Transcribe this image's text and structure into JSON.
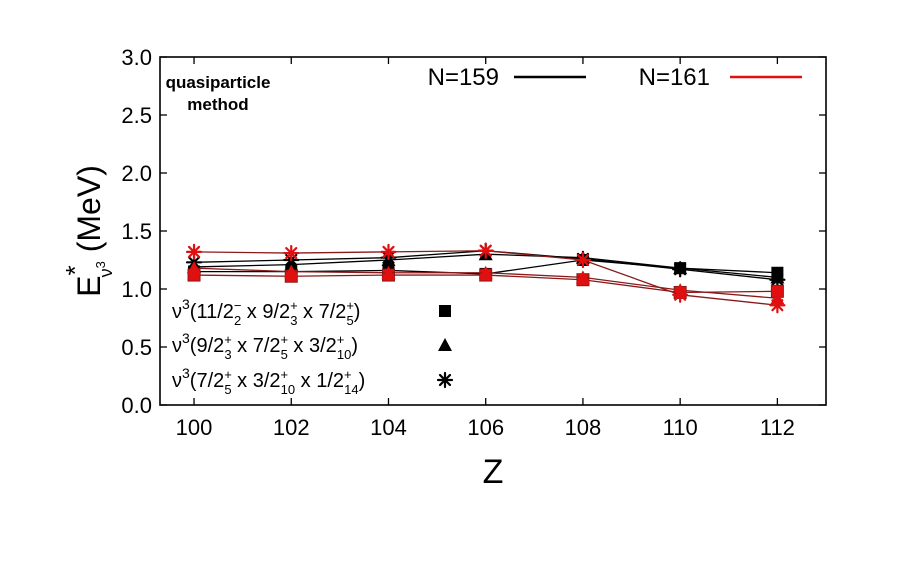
{
  "chart_data": {
    "type": "line",
    "title": "",
    "xlabel": "Z",
    "ylabel": {
      "main": "E",
      "star": "*",
      "sub": "ν",
      "subsup": "3",
      "unit": " (MeV)"
    },
    "xlim": [
      99.3,
      113
    ],
    "ylim": [
      0,
      3.0
    ],
    "x_ticks": [
      100,
      102,
      104,
      106,
      108,
      110,
      112
    ],
    "y_ticks": [
      0.0,
      0.5,
      1.0,
      1.5,
      2.0,
      2.5,
      3.0
    ],
    "y_tick_labels": [
      "0.0",
      "0.5",
      "1.0",
      "1.5",
      "2.0",
      "2.5",
      "3.0"
    ],
    "x": [
      100,
      102,
      104,
      106,
      108,
      110,
      112
    ],
    "annotation": [
      "quasiparticle",
      "method"
    ],
    "colors": {
      "N159": "#000000",
      "N161": "#e01010",
      "N161_line": "#8a1a1a"
    },
    "color_legend": [
      {
        "label": "N=159",
        "color": "#000000"
      },
      {
        "label": "N=161",
        "color": "#e01010"
      }
    ],
    "marker_legend": [
      {
        "marker": "square",
        "prefix": "ν",
        "exp": "3",
        "parts": [
          {
            "t": "(11/2"
          },
          {
            "sup": "−",
            "sub": "2"
          },
          {
            "t": " x 9/2"
          },
          {
            "sup": "+",
            "sub": "3"
          },
          {
            "t": " x 7/2"
          },
          {
            "sup": "+",
            "sub": "5"
          },
          {
            "t": ")"
          }
        ]
      },
      {
        "marker": "triangle",
        "prefix": "ν",
        "exp": "3",
        "parts": [
          {
            "t": "(9/2"
          },
          {
            "sup": "+",
            "sub": "3"
          },
          {
            "t": " x 7/2"
          },
          {
            "sup": "+",
            "sub": "5"
          },
          {
            "t": " x 3/2"
          },
          {
            "sup": "+",
            "sub": "10"
          },
          {
            "t": ")"
          }
        ]
      },
      {
        "marker": "star",
        "prefix": "ν",
        "exp": "3",
        "parts": [
          {
            "t": "(7/2"
          },
          {
            "sup": "+",
            "sub": "5"
          },
          {
            "t": " x 3/2"
          },
          {
            "sup": "+",
            "sub": "10"
          },
          {
            "t": " x 1/2"
          },
          {
            "sup": "+",
            "sub": "14"
          },
          {
            "t": ")"
          }
        ]
      }
    ],
    "series": [
      {
        "name": "N=159 square",
        "group": "N159",
        "marker": "square",
        "values": [
          1.15,
          1.15,
          1.16,
          1.13,
          1.25,
          1.18,
          1.14
        ]
      },
      {
        "name": "N=159 triangle",
        "group": "N159",
        "marker": "triangle",
        "values": [
          1.19,
          1.21,
          1.25,
          1.3,
          1.27,
          1.18,
          1.1
        ]
      },
      {
        "name": "N=159 star",
        "group": "N159",
        "marker": "star",
        "values": [
          1.23,
          1.25,
          1.27,
          1.33,
          1.26,
          1.17,
          1.08
        ]
      },
      {
        "name": "N=161 square",
        "group": "N161",
        "marker": "square",
        "values": [
          1.12,
          1.11,
          1.12,
          1.12,
          1.08,
          0.97,
          0.98
        ]
      },
      {
        "name": "N=161 triangle",
        "group": "N161",
        "marker": "triangle",
        "values": [
          1.18,
          1.15,
          1.14,
          1.14,
          1.1,
          0.99,
          0.92
        ]
      },
      {
        "name": "N=161 star",
        "group": "N161",
        "marker": "star",
        "values": [
          1.32,
          1.31,
          1.32,
          1.33,
          1.25,
          0.95,
          0.86
        ]
      }
    ]
  }
}
